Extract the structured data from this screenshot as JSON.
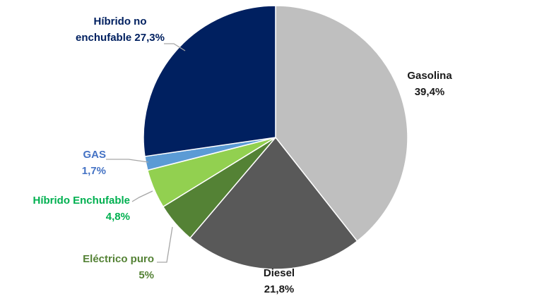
{
  "chart_data": {
    "type": "pie",
    "slices": [
      {
        "label_lines": [
          "Gasolina",
          "39,4%"
        ],
        "value": 39.4,
        "color": "#bfbfbf",
        "label_color": "#1a1a1a"
      },
      {
        "label_lines": [
          "Diesel",
          "21,8%"
        ],
        "value": 21.8,
        "color": "#595959",
        "label_color": "#1a1a1a"
      },
      {
        "label_lines": [
          "Eléctrico puro",
          "5%"
        ],
        "value": 5.0,
        "color": "#548235",
        "label_color": "#548235"
      },
      {
        "label_lines": [
          "Híbrido Enchufable",
          "4,8%"
        ],
        "value": 4.8,
        "color": "#92d050",
        "label_color": "#00b050"
      },
      {
        "label_lines": [
          "GAS",
          "1,7%"
        ],
        "value": 1.7,
        "color": "#5b9bd5",
        "label_color": "#4472c4"
      },
      {
        "label_lines": [
          "Híbrido no",
          "enchufable 27,3%"
        ],
        "value": 27.3,
        "color": "#002060",
        "label_color": "#002060"
      }
    ]
  }
}
